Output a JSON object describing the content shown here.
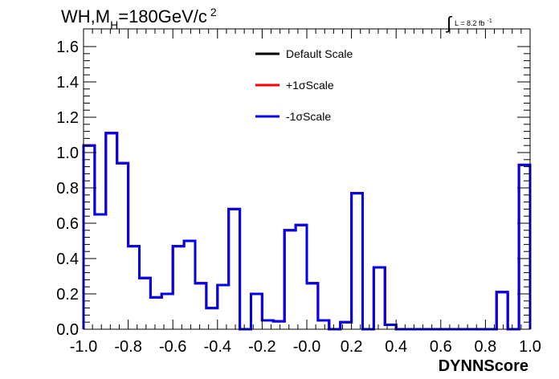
{
  "chart_data": {
    "type": "line",
    "title": {
      "prefix": "WH,M",
      "subscript": "H",
      "middle": "=180GeV/c",
      "superscript": "2"
    },
    "luminosity": {
      "symbol": "∫",
      "text": "L = 8.2 fb",
      "superscript": "-1"
    },
    "xlabel": "DYNNScore",
    "ylabel": "",
    "xlim": [
      -1.0,
      1.0
    ],
    "ylim": [
      0.0,
      1.7
    ],
    "x_ticks": [
      "-1.0",
      "-0.8",
      "-0.6",
      "-0.4",
      "-0.2",
      "-0.0",
      "0.2",
      "0.4",
      "0.6",
      "0.8",
      "1.0"
    ],
    "x_tick_values": [
      -1.0,
      -0.8,
      -0.6,
      -0.4,
      -0.2,
      0.0,
      0.2,
      0.4,
      0.6,
      0.8,
      1.0
    ],
    "y_ticks": [
      "0.0",
      "0.2",
      "0.4",
      "0.6",
      "0.8",
      "1.0",
      "1.2",
      "1.4",
      "1.6"
    ],
    "y_tick_values": [
      0.0,
      0.2,
      0.4,
      0.6,
      0.8,
      1.0,
      1.2,
      1.4,
      1.6
    ],
    "bin_edges": [
      -1.0,
      -0.95,
      -0.9,
      -0.85,
      -0.8,
      -0.75,
      -0.7,
      -0.65,
      -0.6,
      -0.55,
      -0.5,
      -0.45,
      -0.4,
      -0.35,
      -0.3,
      -0.25,
      -0.2,
      -0.15,
      -0.1,
      -0.05,
      0.0,
      0.05,
      0.1,
      0.15,
      0.2,
      0.25,
      0.3,
      0.35,
      0.4,
      0.45,
      0.5,
      0.55,
      0.6,
      0.65,
      0.7,
      0.75,
      0.8,
      0.85,
      0.9,
      0.95,
      1.0
    ],
    "legend_position": "top-center",
    "grid": false,
    "series": [
      {
        "name": "Default Scale",
        "color": "#000000",
        "values": [
          1.04,
          0.65,
          1.11,
          0.94,
          0.47,
          0.29,
          0.18,
          0.2,
          0.47,
          0.5,
          0.26,
          0.12,
          0.25,
          0.68,
          0.0,
          0.2,
          0.05,
          0.045,
          0.56,
          0.59,
          0.26,
          0.05,
          0.0,
          0.04,
          0.77,
          0.0,
          0.35,
          0.025,
          0.0,
          0.0,
          0.0,
          0.0,
          0.0,
          0.0,
          0.0,
          0.0,
          0.0,
          0.21,
          0.0,
          0.93
        ]
      },
      {
        "name": "+1σScale",
        "color": "#ff0000",
        "values": [
          1.04,
          0.65,
          1.11,
          0.94,
          0.47,
          0.29,
          0.18,
          0.2,
          0.47,
          0.5,
          0.26,
          0.12,
          0.25,
          0.68,
          0.0,
          0.2,
          0.05,
          0.045,
          0.56,
          0.59,
          0.26,
          0.05,
          0.0,
          0.04,
          0.77,
          0.0,
          0.35,
          0.025,
          0.0,
          0.0,
          0.0,
          0.0,
          0.0,
          0.0,
          0.0,
          0.0,
          0.0,
          0.21,
          0.0,
          0.93
        ]
      },
      {
        "name": "-1σScale",
        "color": "#0000ee",
        "values": [
          1.04,
          0.65,
          1.11,
          0.94,
          0.47,
          0.29,
          0.18,
          0.2,
          0.47,
          0.5,
          0.26,
          0.12,
          0.25,
          0.68,
          0.0,
          0.2,
          0.05,
          0.045,
          0.56,
          0.59,
          0.26,
          0.05,
          0.0,
          0.04,
          0.77,
          0.0,
          0.35,
          0.025,
          0.0,
          0.0,
          0.0,
          0.0,
          0.0,
          0.0,
          0.0,
          0.0,
          0.0,
          0.21,
          0.0,
          0.93
        ]
      }
    ]
  }
}
